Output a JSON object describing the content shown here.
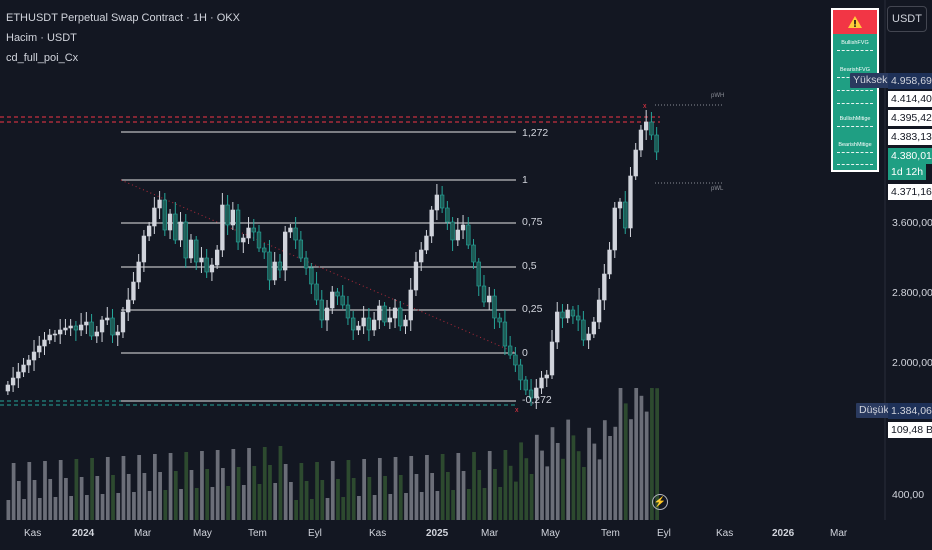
{
  "legend": {
    "title": "ETHUSDT Perpetual Swap Contract · 1H · OKX",
    "volume": "Hacim · USDT",
    "indicator": "cd_full_poi_Cx"
  },
  "currency_button": "USDT",
  "poi_panel": {
    "warning_icon": "warning-icon",
    "rows": [
      "BullishFVG",
      "BearishFVG",
      "BullishMitige",
      "BearishMitige"
    ]
  },
  "price_tags": {
    "high_label": "Yüksek",
    "high_value": "4.958,69",
    "p1": "4.414,40",
    "p2": "4.395,42",
    "p3": "4.383,13",
    "current": "4.380,01",
    "countdown": "1d 12h",
    "p4": "4.371,16",
    "low_label": "Düşük",
    "low_value": "1.384,06",
    "volume_value": "109,48 B"
  },
  "price_axis": [
    "3.600,00",
    "2.800,00",
    "2.000,00",
    "400,00"
  ],
  "time_axis": [
    {
      "label": "Kas",
      "bold": false
    },
    {
      "label": "2024",
      "bold": true
    },
    {
      "label": "Mar",
      "bold": false
    },
    {
      "label": "May",
      "bold": false
    },
    {
      "label": "Tem",
      "bold": false
    },
    {
      "label": "Eyl",
      "bold": false
    },
    {
      "label": "Kas",
      "bold": false
    },
    {
      "label": "2025",
      "bold": true
    },
    {
      "label": "Mar",
      "bold": false
    },
    {
      "label": "May",
      "bold": false
    },
    {
      "label": "Tem",
      "bold": false
    },
    {
      "label": "Eyl",
      "bold": false
    },
    {
      "label": "Kas",
      "bold": false
    },
    {
      "label": "2026",
      "bold": true
    },
    {
      "label": "Mar",
      "bold": false
    }
  ],
  "fib_levels": [
    "1,272",
    "1",
    "0,75",
    "0,5",
    "0,25",
    "0",
    "-0,272"
  ],
  "pwh_label": "pWH",
  "pwl_label": "pWL",
  "colors": {
    "bull": "#d1d4dc",
    "bear": "#26a69a",
    "bear_body": "#1e5c56",
    "vol_up": "#6b6e78",
    "vol_down": "#2d4a2f",
    "panel_bg": "#1f9f83",
    "warning": "#f23645",
    "high_line": "#f23645"
  }
}
